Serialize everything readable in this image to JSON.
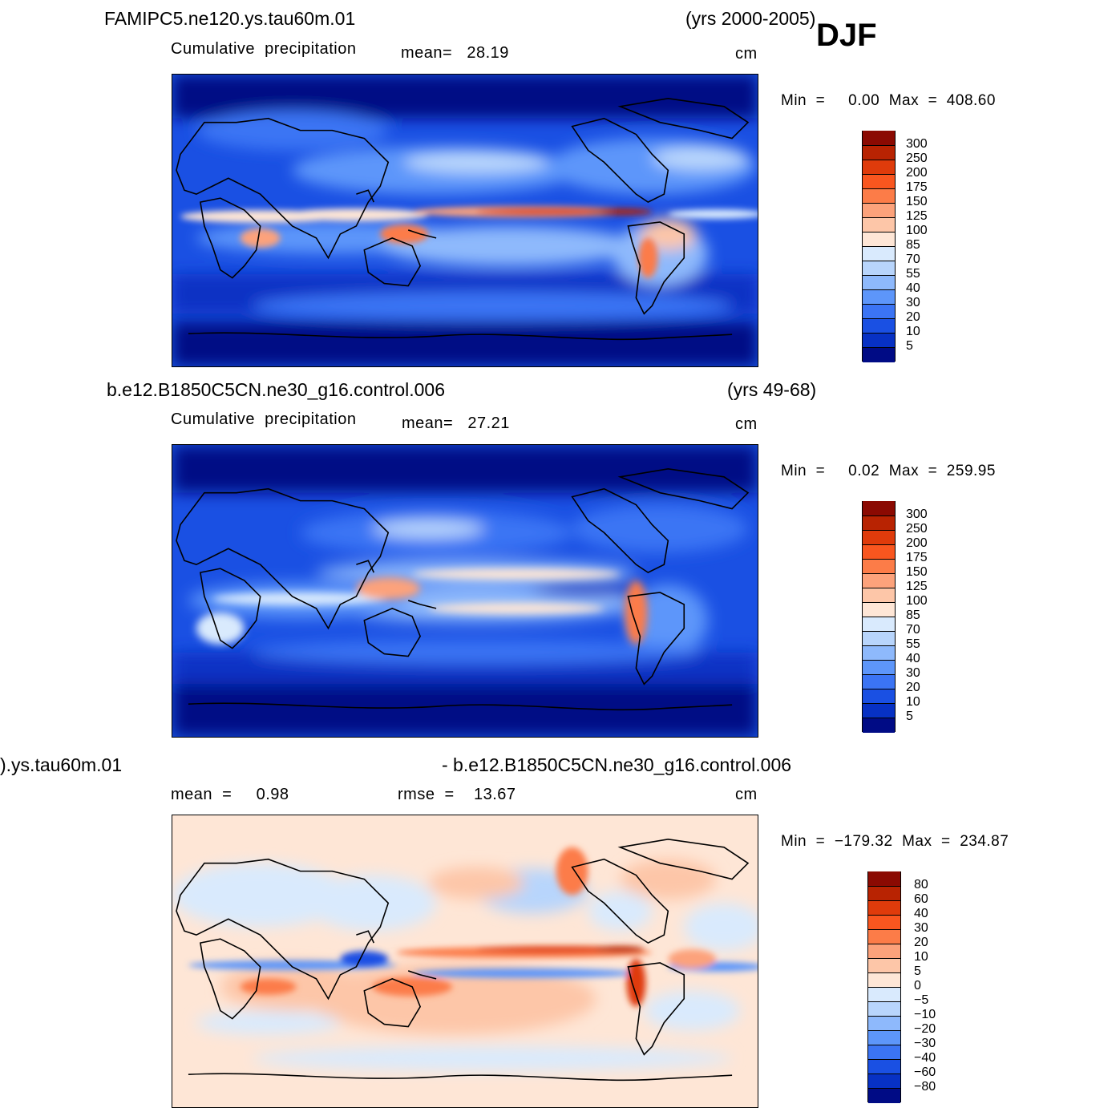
{
  "season": "DJF",
  "panels": [
    {
      "case": "FAMIPC5.ne120.ys.tau60m.01",
      "years": "(yrs 2000-2005)",
      "field": "Cumulative  precipitation",
      "stat1": "mean=   28.19",
      "stat2": "",
      "units": "cm",
      "minmax": "Min  =     0.00  Max  =  408.60",
      "levels": [
        "300",
        "250",
        "200",
        "175",
        "150",
        "125",
        "100",
        "85",
        "70",
        "55",
        "40",
        "30",
        "20",
        "10",
        "5"
      ],
      "colors": [
        "#8b0a02",
        "#b82302",
        "#df3b0b",
        "#f9561f",
        "#fc7c48",
        "#fca27b",
        "#fdc6a8",
        "#fee6d6",
        "#d9eafd",
        "#b8d5fc",
        "#8eb9fc",
        "#5d96fa",
        "#3b74f4",
        "#1a50e3",
        "#0731c4",
        "#000b85"
      ]
    },
    {
      "case": "b.e12.B1850C5CN.ne30_g16.control.006",
      "years": "(yrs 49-68)",
      "field": "Cumulative  precipitation",
      "stat1": "mean=   27.21",
      "stat2": "",
      "units": "cm",
      "minmax": "Min  =     0.02  Max  =  259.95",
      "levels": [
        "300",
        "250",
        "200",
        "175",
        "150",
        "125",
        "100",
        "85",
        "70",
        "55",
        "40",
        "30",
        "20",
        "10",
        "5"
      ],
      "colors": [
        "#8b0a02",
        "#b82302",
        "#df3b0b",
        "#f9561f",
        "#fc7c48",
        "#fca27b",
        "#fdc6a8",
        "#fee6d6",
        "#d9eafd",
        "#b8d5fc",
        "#8eb9fc",
        "#5d96fa",
        "#3b74f4",
        "#1a50e3",
        "#0731c4",
        "#000b85"
      ]
    },
    {
      "case": ").ys.tau60m.01",
      "years": "- b.e12.B1850C5CN.ne30_g16.control.006",
      "field": "",
      "stat1": "mean  =     0.98",
      "stat2": "rmse  =    13.67",
      "units": "cm",
      "minmax": "Min  =  −179.32  Max  =  234.87",
      "levels": [
        "80",
        "60",
        "40",
        "30",
        "20",
        "10",
        "5",
        "0",
        "−5",
        "−10",
        "−20",
        "−30",
        "−40",
        "−60",
        "−80"
      ],
      "colors": [
        "#8b0a02",
        "#b82302",
        "#df3b0b",
        "#f9561f",
        "#fc7c48",
        "#fca27b",
        "#fdc6a8",
        "#fee6d6",
        "#d9eafd",
        "#b8d5fc",
        "#8eb9fc",
        "#5d96fa",
        "#3b74f4",
        "#1a50e3",
        "#0731c4",
        "#000b85"
      ]
    }
  ]
}
